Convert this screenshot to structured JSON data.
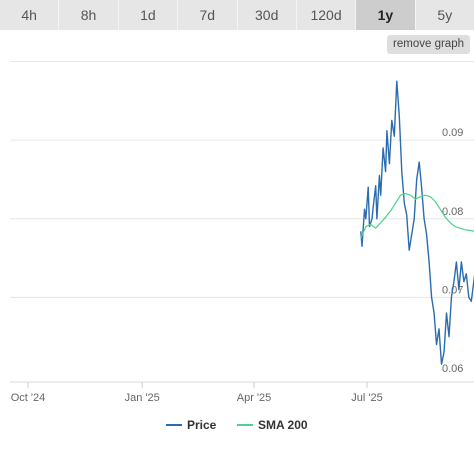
{
  "tabs": [
    {
      "label": "4h"
    },
    {
      "label": "8h"
    },
    {
      "label": "1d"
    },
    {
      "label": "7d"
    },
    {
      "label": "30d"
    },
    {
      "label": "120d"
    },
    {
      "label": "1y",
      "active": true
    },
    {
      "label": "5y"
    }
  ],
  "remove_graph_label": "remove graph",
  "chart_data": {
    "type": "line",
    "ylim": [
      0.06,
      0.1
    ],
    "y_ticks": [
      "0.06",
      "0.07",
      "0.08",
      "0.09"
    ],
    "x_ticks": [
      "Oct '24",
      "Jan '25",
      "Apr '25",
      "Jul '25"
    ],
    "grid": true,
    "legend_position": "bottom",
    "series": [
      {
        "name": "Price",
        "color": "#2b6cb0",
        "x": [
          "2025-06-26",
          "2025-06-27",
          "2025-06-29",
          "2025-06-30",
          "2025-07-02",
          "2025-07-03",
          "2025-07-05",
          "2025-07-06",
          "2025-07-08",
          "2025-07-09",
          "2025-07-11",
          "2025-07-12",
          "2025-07-14",
          "2025-07-16",
          "2025-07-17",
          "2025-07-19",
          "2025-07-21",
          "2025-07-23",
          "2025-07-25",
          "2025-07-27",
          "2025-07-29",
          "2025-07-31",
          "2025-08-02",
          "2025-08-04",
          "2025-08-06",
          "2025-08-08",
          "2025-08-10",
          "2025-08-12",
          "2025-08-14",
          "2025-08-16",
          "2025-08-18",
          "2025-08-20",
          "2025-08-22",
          "2025-08-24",
          "2025-08-26",
          "2025-08-28",
          "2025-08-30",
          "2025-09-01",
          "2025-09-03",
          "2025-09-05",
          "2025-09-07",
          "2025-09-09",
          "2025-09-11",
          "2025-09-13",
          "2025-09-15",
          "2025-09-17",
          "2025-09-19",
          "2025-09-21",
          "2025-09-23",
          "2025-09-25",
          "2025-09-27",
          "2025-09-29",
          "2025-10-01",
          "2025-10-03",
          "2025-10-05",
          "2025-10-07"
        ],
        "values": [
          0.0784,
          0.0765,
          0.0812,
          0.08,
          0.084,
          0.079,
          0.08,
          0.0815,
          0.0842,
          0.08,
          0.0855,
          0.083,
          0.089,
          0.086,
          0.0912,
          0.087,
          0.0925,
          0.0905,
          0.0975,
          0.093,
          0.086,
          0.082,
          0.0805,
          0.076,
          0.078,
          0.08,
          0.085,
          0.0872,
          0.084,
          0.08,
          0.078,
          0.0745,
          0.07,
          0.068,
          0.064,
          0.066,
          0.0615,
          0.063,
          0.068,
          0.065,
          0.07,
          0.072,
          0.0745,
          0.071,
          0.0745,
          0.072,
          0.073,
          0.07,
          0.0695,
          0.072,
          0.0745,
          0.073,
          0.076,
          0.0725,
          0.075,
          0.0785
        ]
      },
      {
        "name": "SMA 200",
        "color": "#4cd28a",
        "x": [
          "2025-06-26",
          "2025-06-30",
          "2025-07-04",
          "2025-07-08",
          "2025-07-12",
          "2025-07-16",
          "2025-07-20",
          "2025-07-24",
          "2025-07-28",
          "2025-08-01",
          "2025-08-05",
          "2025-08-09",
          "2025-08-13",
          "2025-08-17",
          "2025-08-21",
          "2025-08-25",
          "2025-08-29",
          "2025-09-02",
          "2025-09-06",
          "2025-09-10",
          "2025-09-14",
          "2025-09-18",
          "2025-09-22",
          "2025-09-26",
          "2025-09-30",
          "2025-10-04",
          "2025-10-07"
        ],
        "values": [
          0.0775,
          0.079,
          0.0793,
          0.0788,
          0.0795,
          0.0802,
          0.081,
          0.082,
          0.083,
          0.0832,
          0.083,
          0.0825,
          0.0828,
          0.083,
          0.0828,
          0.0822,
          0.0812,
          0.0802,
          0.0795,
          0.079,
          0.0788,
          0.0786,
          0.0785,
          0.0784,
          0.0782,
          0.078,
          0.0778
        ]
      }
    ]
  }
}
